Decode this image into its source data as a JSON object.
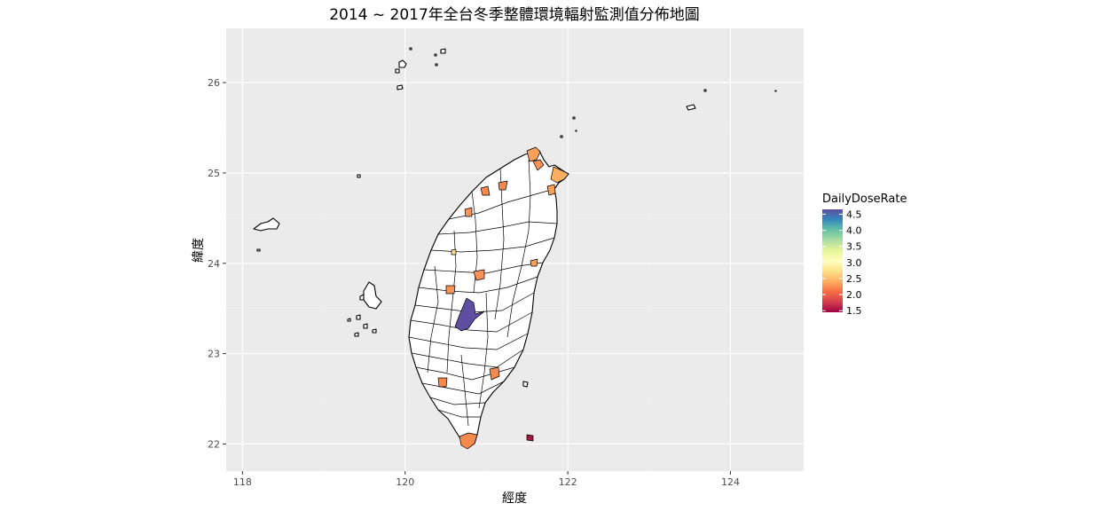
{
  "title": "2014 ~ 2017年全台冬季整體環境輻射監測值分佈地圖",
  "x_axis_label": "經度",
  "y_axis_label": "緯度",
  "x_ticks": [
    {
      "value": 118,
      "label": "118"
    },
    {
      "value": 120,
      "label": "120"
    },
    {
      "value": 122,
      "label": "122"
    },
    {
      "value": 124,
      "label": "124"
    }
  ],
  "y_ticks": [
    {
      "value": 22,
      "label": "22"
    },
    {
      "value": 23,
      "label": "23"
    },
    {
      "value": 24,
      "label": "24"
    },
    {
      "value": 25,
      "label": "25"
    },
    {
      "value": 26,
      "label": "26"
    }
  ],
  "legend": {
    "title": "DailyDoseRate",
    "breaks": [
      {
        "value": 4.5,
        "label": "4.5"
      },
      {
        "value": 4.0,
        "label": "4.0"
      },
      {
        "value": 3.5,
        "label": "3.5"
      },
      {
        "value": 3.0,
        "label": "3.0"
      },
      {
        "value": 2.5,
        "label": "2.5"
      },
      {
        "value": 2.0,
        "label": "2.0"
      },
      {
        "value": 1.5,
        "label": "1.5"
      }
    ],
    "range": [
      1.45,
      4.65
    ],
    "gradient_colors": [
      "#9e0142",
      "#d53e4f",
      "#f46d43",
      "#fdae61",
      "#fee08b",
      "#ffffbf",
      "#e6f598",
      "#abdda4",
      "#66c2a5",
      "#3288bd",
      "#5e4fa2"
    ]
  },
  "map": {
    "panel_background": "#ebebeb",
    "xlim": [
      117.8,
      124.9
    ],
    "ylim": [
      21.7,
      26.6
    ],
    "empty_fill": "#ffffff"
  }
}
